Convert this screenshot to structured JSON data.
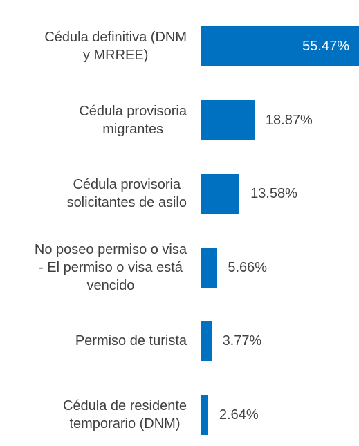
{
  "chart_data": {
    "type": "hbar",
    "categories": [
      "Cédula definitiva (DNM\ny MRREE)",
      "Cédula provisoria\nmigrantes",
      "Cédula provisoria\nsolicitantes de asilo",
      "No poseo permiso o visa\n- El permiso o visa está\nvencido",
      "Permiso de turista",
      "Cédula de residente\ntemporario (DNM)"
    ],
    "values": [
      55.47,
      18.87,
      13.58,
      5.66,
      3.77,
      2.64
    ],
    "value_labels": [
      "55.47%",
      "18.87%",
      "13.58%",
      "5.66%",
      "3.77%",
      "2.64%"
    ],
    "color": "#0070c0",
    "xlim": [
      0,
      55.47
    ]
  }
}
